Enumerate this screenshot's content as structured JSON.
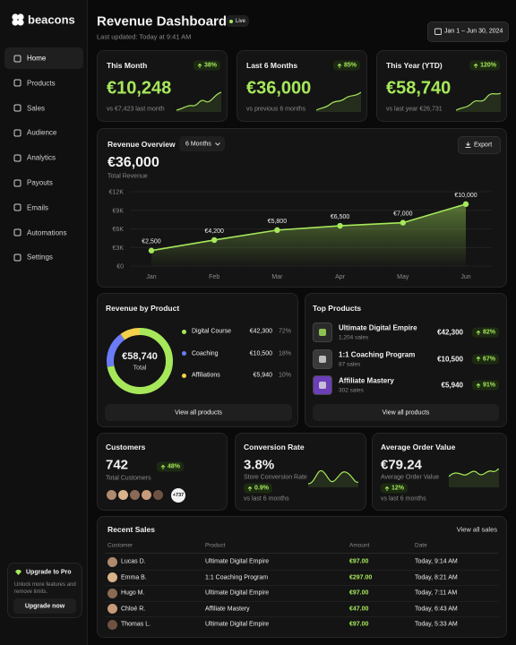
{
  "sidebar": {
    "brand": "beacons",
    "nav": [
      "Home",
      "Products",
      "Sales",
      "Audience",
      "Analytics",
      "Payouts",
      "Emails",
      "Automations",
      "Settings"
    ],
    "upgrade": {
      "title": "Upgrade to Pro",
      "text": "Unlock more features and remove limits.",
      "button": "Upgrade now"
    }
  },
  "header": {
    "title": "Revenue Dashboard",
    "status": "Live",
    "updated": "Last updated: Today at 9:41 AM",
    "date_range": "Jan 1 – Jun 30, 2024"
  },
  "stats": [
    {
      "title": "This Month",
      "change": "38%",
      "value": "€10,248",
      "compare": "vs €7,423 last month"
    },
    {
      "title": "Last 6 Months",
      "change": "85%",
      "value": "€36,000",
      "compare": "vs previous 6 months"
    },
    {
      "title": "This Year (YTD)",
      "change": "120%",
      "value": "€58,740",
      "compare": "vs last year €26,731"
    }
  ],
  "overview": {
    "title": "Revenue Overview",
    "period": "6 Months",
    "export": "Export",
    "total": "€36,000",
    "total_label": "Total Revenue",
    "chart": {
      "type": "line",
      "categories": [
        "Jan",
        "Feb",
        "Mar",
        "Apr",
        "May",
        "Jun"
      ],
      "values": [
        2500,
        4200,
        5800,
        6500,
        7000,
        10000
      ],
      "value_labels": [
        "€2,500",
        "€4,200",
        "€5,800",
        "€6,500",
        "€7,000",
        "€10,000"
      ],
      "ylim": [
        0,
        12000
      ],
      "yticks": [
        {
          "value": 0,
          "label": "€0"
        },
        {
          "value": 3000,
          "label": "€3K"
        },
        {
          "value": 6000,
          "label": "€6K"
        },
        {
          "value": 9000,
          "label": "€9K"
        },
        {
          "value": 12000,
          "label": "€12K"
        }
      ],
      "grid": true,
      "color": "#a6e85a"
    }
  },
  "by_product": {
    "title": "Revenue by Product",
    "total": "€58,740",
    "total_label": "Total",
    "button": "View all products",
    "chart": {
      "type": "pie",
      "categories": [
        "Digital Course",
        "Coaching",
        "Affiliations"
      ],
      "amounts": [
        "€42,300",
        "€10,500",
        "€5,940"
      ],
      "values": [
        72,
        18,
        10
      ],
      "value_labels": [
        "72%",
        "18%",
        "10%"
      ],
      "colors": [
        "#a6e85a",
        "#6b7cf6",
        "#f2d14b"
      ]
    }
  },
  "top_products": {
    "title": "Top Products",
    "button": "View all products",
    "items": [
      {
        "name": "Ultimate Digital Empire",
        "sales": "1,204 sales",
        "amount": "€42,300",
        "change": "82%"
      },
      {
        "name": "1:1 Coaching Program",
        "sales": "87 sales",
        "amount": "€10,500",
        "change": "67%"
      },
      {
        "name": "Affiliate Mastery",
        "sales": "302 sales",
        "amount": "€5,940",
        "change": "91%"
      }
    ]
  },
  "customers": {
    "title": "Customers",
    "value": "742",
    "caption": "Total Customers",
    "change": "48%",
    "more": "+737"
  },
  "conversion": {
    "title": "Conversion Rate",
    "value": "3.8%",
    "caption": "Store Conversion Rate",
    "change": "0.9%",
    "compare": "vs last 6 months"
  },
  "aov": {
    "title": "Average Order Value",
    "value": "€79.24",
    "caption": "Average Order Value",
    "change": "12%",
    "compare": "vs last 6 months"
  },
  "recent_sales": {
    "title": "Recent Sales",
    "link": "View all sales",
    "columns": [
      "Customer",
      "Product",
      "Amount",
      "Date"
    ],
    "rows": [
      [
        "Lucas D.",
        "Ultimate Digital Empire",
        "€97.00",
        "Today, 9:14 AM"
      ],
      [
        "Emma B.",
        "1:1 Coaching Program",
        "€297.00",
        "Today, 8:21 AM"
      ],
      [
        "Hugo M.",
        "Ultimate Digital Empire",
        "€97.00",
        "Today, 7:11 AM"
      ],
      [
        "Chloé R.",
        "Affiliate Mastery",
        "€47.00",
        "Today, 6:43 AM"
      ],
      [
        "Thomas L.",
        "Ultimate Digital Empire",
        "€97.00",
        "Today, 5:33 AM"
      ]
    ]
  }
}
